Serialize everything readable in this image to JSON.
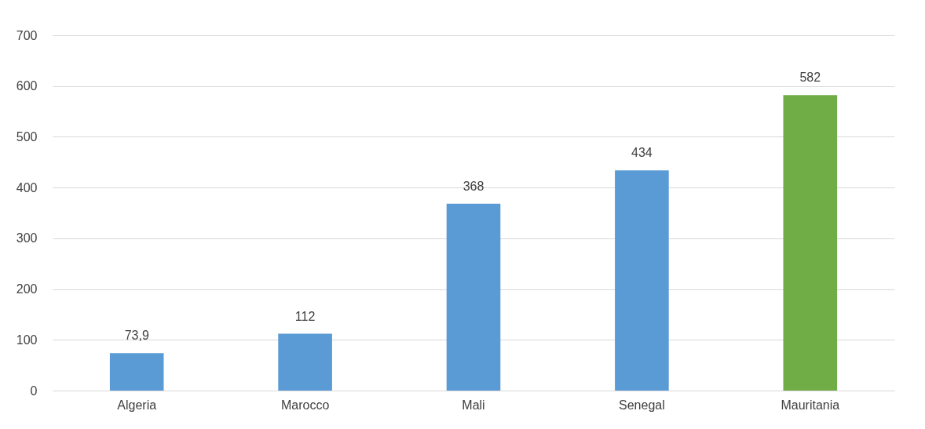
{
  "chart_data": {
    "type": "bar",
    "categories": [
      "Algeria",
      "Marocco",
      "Mali",
      "Senegal",
      "Mauritania"
    ],
    "values": [
      73.9,
      112,
      368,
      434,
      582
    ],
    "colors": [
      "#5b9bd5",
      "#5b9bd5",
      "#5b9bd5",
      "#5b9bd5",
      "#70ad47"
    ],
    "value_labels": [
      "73,9",
      "112",
      "368",
      "434",
      "582"
    ],
    "ylim": [
      0,
      700
    ],
    "yticks": [
      0,
      100,
      200,
      300,
      400,
      500,
      600,
      700
    ],
    "grid": "y"
  }
}
